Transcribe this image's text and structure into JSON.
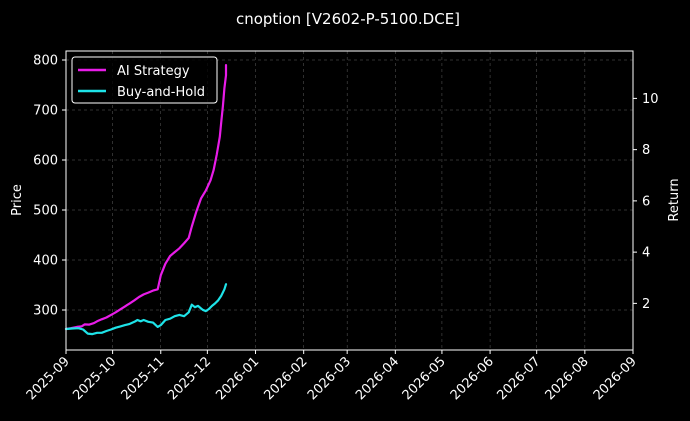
{
  "chart_data": {
    "type": "line",
    "title": "cnoption [V2602-P-5100.DCE]",
    "ylabel": "Price",
    "y2label": "Return",
    "ylim": [
      220,
      818
    ],
    "y2lim": [
      0.18,
      11.85
    ],
    "yticks": [
      300,
      400,
      500,
      600,
      700,
      800
    ],
    "y2ticks": [
      2,
      4,
      6,
      8,
      10
    ],
    "xlim": [
      "2025-09-01",
      "2026-09-01"
    ],
    "xticks": [
      "2025-09",
      "2025-10",
      "2025-11",
      "2025-12",
      "2026-01",
      "2026-02",
      "2026-03",
      "2026-04",
      "2026-05",
      "2026-06",
      "2026-07",
      "2026-08",
      "2026-09"
    ],
    "grid": true,
    "legend_position": "top-left",
    "series": [
      {
        "name": "AI Strategy",
        "axis": "right",
        "color": "#e81ce8",
        "points": [
          [
            "2025-09-01",
            1.0
          ],
          [
            "2025-09-04",
            1.03
          ],
          [
            "2025-09-08",
            1.08
          ],
          [
            "2025-09-11",
            1.1
          ],
          [
            "2025-09-13",
            1.18
          ],
          [
            "2025-09-16",
            1.17
          ],
          [
            "2025-09-19",
            1.23
          ],
          [
            "2025-09-21",
            1.3
          ],
          [
            "2025-09-24",
            1.38
          ],
          [
            "2025-09-27",
            1.45
          ],
          [
            "2025-09-30",
            1.55
          ],
          [
            "2025-10-03",
            1.65
          ],
          [
            "2025-10-06",
            1.77
          ],
          [
            "2025-10-09",
            1.88
          ],
          [
            "2025-10-12",
            2.0
          ],
          [
            "2025-10-15",
            2.12
          ],
          [
            "2025-10-18",
            2.25
          ],
          [
            "2025-10-21",
            2.35
          ],
          [
            "2025-10-24",
            2.42
          ],
          [
            "2025-10-27",
            2.5
          ],
          [
            "2025-10-30",
            2.55
          ],
          [
            "2025-11-01",
            3.1
          ],
          [
            "2025-11-04",
            3.55
          ],
          [
            "2025-11-07",
            3.85
          ],
          [
            "2025-11-10",
            4.0
          ],
          [
            "2025-11-13",
            4.15
          ],
          [
            "2025-11-16",
            4.35
          ],
          [
            "2025-11-19",
            4.55
          ],
          [
            "2025-11-21",
            5.0
          ],
          [
            "2025-11-24",
            5.6
          ],
          [
            "2025-11-27",
            6.1
          ],
          [
            "2025-11-30",
            6.4
          ],
          [
            "2025-12-03",
            6.8
          ],
          [
            "2025-12-05",
            7.2
          ],
          [
            "2025-12-07",
            7.8
          ],
          [
            "2025-12-09",
            8.5
          ],
          [
            "2025-12-10",
            9.1
          ],
          [
            "2025-12-11",
            9.7
          ],
          [
            "2025-12-12",
            10.4
          ],
          [
            "2025-12-13",
            10.9
          ],
          [
            "2025-12-13",
            11.3
          ]
        ]
      },
      {
        "name": "Buy-and-Hold",
        "axis": "right",
        "color": "#1ee3e8",
        "points": [
          [
            "2025-09-01",
            1.0
          ],
          [
            "2025-09-05",
            1.02
          ],
          [
            "2025-09-09",
            1.03
          ],
          [
            "2025-09-12",
            0.98
          ],
          [
            "2025-09-15",
            0.82
          ],
          [
            "2025-09-18",
            0.8
          ],
          [
            "2025-09-21",
            0.85
          ],
          [
            "2025-09-24",
            0.85
          ],
          [
            "2025-09-27",
            0.92
          ],
          [
            "2025-09-30",
            0.98
          ],
          [
            "2025-10-03",
            1.05
          ],
          [
            "2025-10-06",
            1.1
          ],
          [
            "2025-10-09",
            1.15
          ],
          [
            "2025-10-12",
            1.2
          ],
          [
            "2025-10-15",
            1.28
          ],
          [
            "2025-10-17",
            1.35
          ],
          [
            "2025-10-19",
            1.3
          ],
          [
            "2025-10-21",
            1.35
          ],
          [
            "2025-10-24",
            1.28
          ],
          [
            "2025-10-27",
            1.25
          ],
          [
            "2025-10-30",
            1.08
          ],
          [
            "2025-11-01",
            1.15
          ],
          [
            "2025-11-04",
            1.35
          ],
          [
            "2025-11-07",
            1.4
          ],
          [
            "2025-11-10",
            1.5
          ],
          [
            "2025-11-13",
            1.55
          ],
          [
            "2025-11-16",
            1.5
          ],
          [
            "2025-11-19",
            1.65
          ],
          [
            "2025-11-21",
            1.95
          ],
          [
            "2025-11-23",
            1.85
          ],
          [
            "2025-11-25",
            1.9
          ],
          [
            "2025-11-28",
            1.75
          ],
          [
            "2025-11-30",
            1.7
          ],
          [
            "2025-12-02",
            1.78
          ],
          [
            "2025-12-04",
            1.9
          ],
          [
            "2025-12-06",
            2.0
          ],
          [
            "2025-12-08",
            2.12
          ],
          [
            "2025-12-10",
            2.3
          ],
          [
            "2025-12-12",
            2.55
          ],
          [
            "2025-12-13",
            2.75
          ]
        ]
      }
    ]
  }
}
